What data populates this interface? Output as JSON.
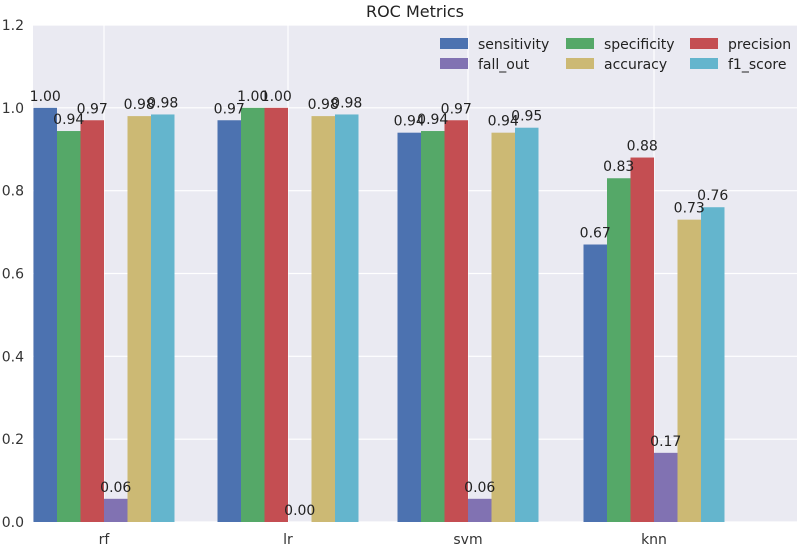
{
  "chart_data": {
    "type": "bar",
    "title": "ROC Metrics",
    "xlabel": "",
    "ylabel": "",
    "categories": [
      "rf",
      "lr",
      "svm",
      "knn"
    ],
    "series": [
      {
        "name": "sensitivity",
        "color": "#4C72B0",
        "values": [
          1.0,
          0.97,
          0.94,
          0.67
        ],
        "labels": [
          "1.00",
          "0.97",
          "0.94",
          "0.67"
        ]
      },
      {
        "name": "specificity",
        "color": "#55A868",
        "values": [
          0.944,
          1.0,
          0.944,
          0.83
        ],
        "labels": [
          "0.94",
          "1.00",
          "0.94",
          "0.83"
        ]
      },
      {
        "name": "precision",
        "color": "#C44E52",
        "values": [
          0.97,
          1.0,
          0.97,
          0.88
        ],
        "labels": [
          "0.97",
          "1.00",
          "0.97",
          "0.88"
        ]
      },
      {
        "name": "fall_out",
        "color": "#8172B2",
        "values": [
          0.056,
          0.0,
          0.056,
          0.167
        ],
        "labels": [
          "0.06",
          "0.00",
          "0.06",
          "0.17"
        ]
      },
      {
        "name": "accuracy",
        "color": "#CCB974",
        "values": [
          0.98,
          0.98,
          0.94,
          0.73
        ],
        "labels": [
          "0.98",
          "0.98",
          "0.94",
          "0.73"
        ]
      },
      {
        "name": "f1_score",
        "color": "#64B5CD",
        "values": [
          0.984,
          0.984,
          0.952,
          0.76
        ],
        "labels": [
          "0.98",
          "0.98",
          "0.95",
          "0.76"
        ]
      }
    ],
    "ylim": [
      0,
      1.2
    ],
    "yticks": [
      "0.0",
      "0.2",
      "0.4",
      "0.6",
      "0.8",
      "1.0",
      "1.2"
    ],
    "grid": true,
    "legend_position": "top-right",
    "legend_columns": 3,
    "background_color": "#EAEAF2"
  }
}
